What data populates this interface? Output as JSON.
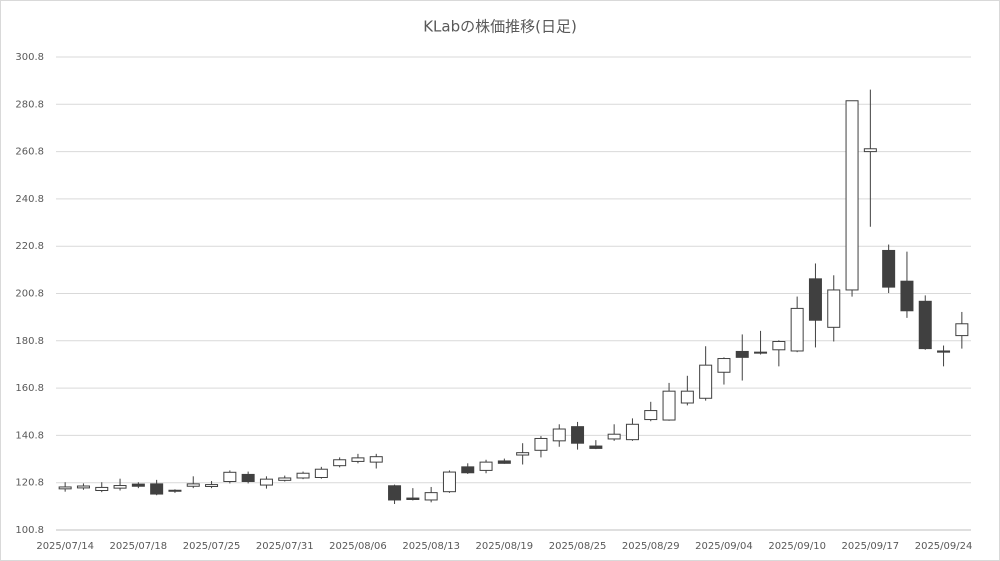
{
  "chart_data": {
    "type": "candlestick",
    "title": "KLabの株価推移(日足)",
    "categories": [
      "2025/07/14",
      null,
      null,
      null,
      "2025/07/18",
      null,
      null,
      null,
      "2025/07/25",
      null,
      null,
      null,
      "2025/07/31",
      null,
      null,
      null,
      "2025/08/06",
      null,
      null,
      null,
      "2025/08/13",
      null,
      null,
      null,
      "2025/08/19",
      null,
      null,
      null,
      "2025/08/25",
      null,
      null,
      null,
      "2025/08/29",
      null,
      null,
      null,
      "2025/09/04",
      null,
      null,
      null,
      "2025/09/10",
      null,
      null,
      null,
      "2025/09/17",
      null,
      null,
      null,
      "2025/09/24",
      null
    ],
    "open": [
      118.2,
      118.6,
      117.5,
      118.5,
      120.2,
      120.3,
      117.6,
      119.3,
      119.2,
      121.3,
      124.3,
      119.8,
      121.8,
      122.8,
      123,
      128,
      129.8,
      129.5,
      119.5,
      114.3,
      113.5,
      117,
      127.5,
      126,
      130,
      132.5,
      134.5,
      138.5,
      144.5,
      136.3,
      139.3,
      139,
      147.5,
      147.3,
      154.5,
      156.5,
      167.5,
      176.3,
      176,
      177,
      176.5,
      207,
      186.5,
      202.3,
      260.8,
      219,
      206,
      197.5,
      176.5,
      183
    ],
    "high": [
      121,
      120.5,
      121,
      122.5,
      121,
      122,
      118,
      123.5,
      121.5,
      126,
      125.5,
      123.5,
      123.8,
      125.5,
      127.5,
      131.5,
      133,
      133,
      120,
      118.5,
      119,
      126,
      129,
      130.5,
      131,
      137.5,
      140.5,
      145.5,
      146.5,
      138.8,
      145.5,
      148,
      155,
      163,
      166,
      178.5,
      173.8,
      183.5,
      185,
      181,
      199.5,
      213.5,
      208.5,
      282.3,
      287,
      221.5,
      218.5,
      200,
      178.8,
      193
    ],
    "low": [
      117,
      117.8,
      116.8,
      117.5,
      118.5,
      115.5,
      116.5,
      118.5,
      118.5,
      120.5,
      120.5,
      118.3,
      121.3,
      122.3,
      122.5,
      127.3,
      129,
      126.8,
      111.8,
      113.3,
      112.5,
      116.5,
      124.5,
      124.8,
      128.8,
      128.5,
      131.5,
      136,
      134.8,
      135,
      138.5,
      138.5,
      146.8,
      147,
      153.5,
      155.5,
      162.3,
      164,
      175,
      170,
      176,
      178,
      180.5,
      199.5,
      229,
      201,
      190.5,
      177,
      170,
      177.5
    ],
    "close": [
      119,
      119.4,
      118.8,
      119.6,
      119.3,
      116,
      117.2,
      120.3,
      120,
      125.2,
      121.3,
      122.3,
      122.8,
      124.8,
      126.5,
      130.5,
      131.3,
      131.8,
      113.5,
      113.7,
      116.6,
      125.3,
      125,
      129.5,
      129,
      133.5,
      139.5,
      143.5,
      137.5,
      135.3,
      141.3,
      145.5,
      151.3,
      159.5,
      159.5,
      170.5,
      173.3,
      173.8,
      175.6,
      180.5,
      194.5,
      189.5,
      202.3,
      282.3,
      262,
      203.5,
      193.5,
      177.5,
      176,
      188
    ],
    "up_color": "#ffffff",
    "down_color": "#404040",
    "edge_color": "#404040",
    "ylim": [
      100.8,
      300.8
    ],
    "yticks": [
      100.8,
      120.8,
      140.8,
      160.8,
      180.8,
      200.8,
      220.8,
      240.8,
      260.8,
      280.8,
      300.8
    ],
    "grid": true
  }
}
